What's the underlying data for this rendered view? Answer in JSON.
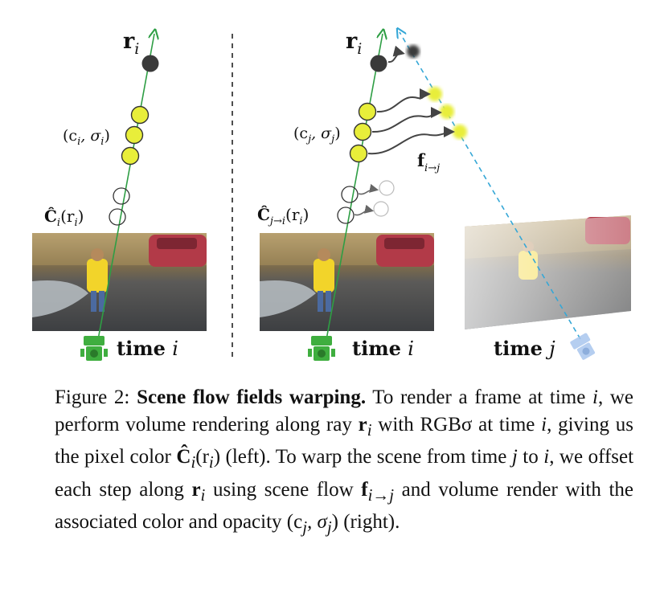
{
  "left_panel": {
    "ray_label_base": "r",
    "ray_label_sub": "i",
    "sample_label": "(c",
    "sample_label_sub": "i",
    "sample_label_mid": ", σ",
    "sample_label_sub2": "i",
    "sample_label_end": ")",
    "color_label": "Ĉ",
    "color_label_sub": "i",
    "color_label_args": "(r",
    "color_label_args_sub": "i",
    "color_label_end": ")",
    "time_word": "time",
    "time_var": "i"
  },
  "right_panel": {
    "ray_label_base": "r",
    "ray_label_sub": "i",
    "sample_label": "(c",
    "sample_label_sub": "j",
    "sample_label_mid": ", σ",
    "sample_label_sub2": "j",
    "sample_label_end": ")",
    "flow_label": "f",
    "flow_label_sub": "i→j",
    "color_label": "Ĉ",
    "color_label_sub": "j→i",
    "color_label_args": "(r",
    "color_label_args_sub": "i",
    "color_label_end": ")",
    "time_i_word": "time",
    "time_i_var": "i",
    "time_j_word": "time",
    "time_j_var": "j"
  },
  "colors": {
    "ray": "#2e9e44",
    "warped_ray": "#35a7d6",
    "sample_fill": "#e8ee3a",
    "camera_i": "#3fae3f",
    "camera_j": "#a9c6ee",
    "dark_point": "#3a3a3a"
  },
  "caption": {
    "figure_label": "Figure 2:",
    "title": "Scene flow fields warping.",
    "text_1": "To render a frame at time",
    "var_i_1": "i",
    "text_2": ", we perform volume rendering along ray",
    "ray_r": "r",
    "ray_sub": "i",
    "text_3": "with RGBσ at time",
    "var_i_2": "i",
    "text_4": ", giving us the pixel color",
    "pixel_C": "Ĉ",
    "pixel_sub": "i",
    "pixel_args": "(r",
    "pixel_args_sub": "i",
    "pixel_end": ")",
    "text_5": "(left). To warp the scene from time",
    "var_j": "j",
    "text_6": "to",
    "var_i_3": "i",
    "text_7": ", we offset each step along",
    "ray_r2": "r",
    "ray_sub2": "i",
    "text_8": "using scene flow",
    "flow_f": "f",
    "flow_sub": "i→j",
    "text_9": "and volume render with the associated color and opacity",
    "cs_open": "(c",
    "cs_sub1": "j",
    "cs_mid": ", σ",
    "cs_sub2": "j",
    "cs_close": ")",
    "text_10": "(right)."
  }
}
